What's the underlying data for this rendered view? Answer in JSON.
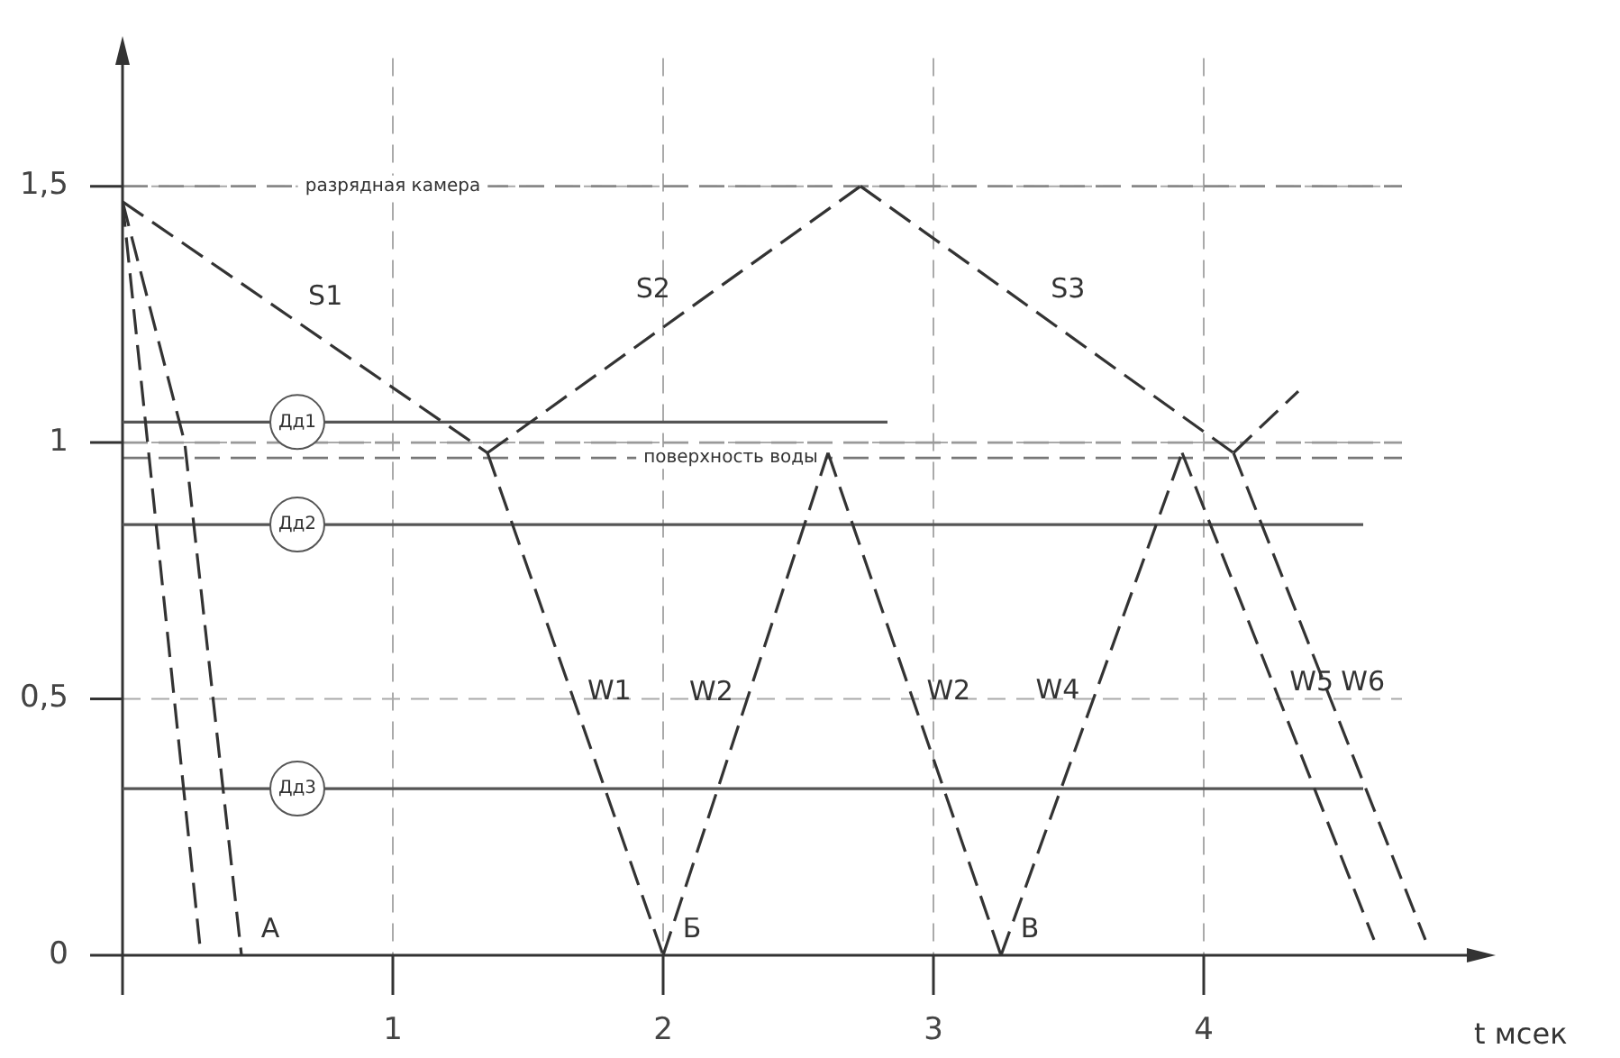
{
  "chart_data": {
    "type": "line",
    "xlabel": "t мсек",
    "xlim": [
      0,
      5.0
    ],
    "ylim": [
      0,
      1.75
    ],
    "xticks": [
      {
        "value": 0,
        "label": null
      },
      1,
      2,
      3,
      4
    ],
    "yticks": [
      0,
      {
        "value": 0.5,
        "label": "0,5"
      },
      1,
      {
        "value": 1.5,
        "label": "1,5"
      }
    ],
    "grid": true,
    "legend": false,
    "marker": "none",
    "series": [
      {
        "color": "#333333",
        "line_style": "dashed",
        "x": [
          0,
          0.29
        ],
        "values": [
          1.47,
          0
        ]
      },
      {
        "color": "#333333",
        "line_style": "dashed",
        "x": [
          0,
          0.23,
          0.44
        ],
        "values": [
          1.47,
          1.0,
          0
        ]
      },
      {
        "name": "S1",
        "color": "#333333",
        "line_style": "dashed",
        "x": [
          0,
          1.35
        ],
        "values": [
          1.47,
          0.98
        ]
      },
      {
        "name": "S2",
        "color": "#333333",
        "line_style": "dashed",
        "x": [
          1.35,
          2.73
        ],
        "values": [
          0.98,
          1.5
        ]
      },
      {
        "name": "S3",
        "color": "#333333",
        "line_style": "dashed",
        "x": [
          2.73,
          4.11
        ],
        "values": [
          1.5,
          0.98
        ]
      },
      {
        "color": "#333333",
        "line_style": "dashed",
        "x": [
          4.11,
          4.35
        ],
        "values": [
          0.98,
          1.1
        ]
      },
      {
        "name": "W1",
        "color": "#333333",
        "line_style": "dashed",
        "x": [
          1.35,
          2.0
        ],
        "values": [
          0.98,
          0
        ]
      },
      {
        "name": "W2",
        "color": "#333333",
        "line_style": "dashed",
        "x": [
          2.0,
          2.61
        ],
        "values": [
          0,
          0.98
        ]
      },
      {
        "name": "W2",
        "color": "#333333",
        "line_style": "dashed",
        "x": [
          2.61,
          3.25
        ],
        "values": [
          0.98,
          0
        ]
      },
      {
        "name": "W4",
        "color": "#333333",
        "line_style": "dashed",
        "x": [
          3.25,
          3.92
        ],
        "values": [
          0,
          0.98
        ]
      },
      {
        "name": "W5",
        "color": "#333333",
        "line_style": "dashed",
        "x": [
          3.92,
          4.63
        ],
        "values": [
          0.98,
          0.03
        ]
      },
      {
        "name": "W6",
        "color": "#333333",
        "line_style": "dashed",
        "x": [
          4.11,
          4.82
        ],
        "values": [
          0.98,
          0.03
        ]
      },
      {
        "name": "Дд1",
        "color": "#555555",
        "line_style": "solid",
        "x": [
          0,
          2.83
        ],
        "values": [
          1.04,
          1.04
        ]
      },
      {
        "name": "Дд2",
        "color": "#555555",
        "line_style": "solid",
        "x": [
          0,
          4.59
        ],
        "values": [
          0.84,
          0.84
        ]
      },
      {
        "name": "Дд3",
        "color": "#555555",
        "line_style": "solid",
        "x": [
          0,
          4.59
        ],
        "values": [
          0.325,
          0.325
        ]
      }
    ],
    "ref_lines": [
      {
        "axis": "y",
        "value": 1.5,
        "label": "разрядная камера",
        "color": "#888888",
        "line_style": "dashed"
      },
      {
        "axis": "y",
        "value": 1.0,
        "label": null,
        "color": "#999999",
        "line_style": "dashed"
      },
      {
        "axis": "y",
        "value": 0.97,
        "label": "поверхность воды",
        "color": "#777777",
        "line_style": "dashed"
      }
    ],
    "annotations": [
      {
        "text": "А",
        "x": 0.44,
        "y": 0
      },
      {
        "text": "Б",
        "x": 2.0,
        "y": 0
      },
      {
        "text": "В",
        "x": 3.25,
        "y": 0
      }
    ]
  }
}
